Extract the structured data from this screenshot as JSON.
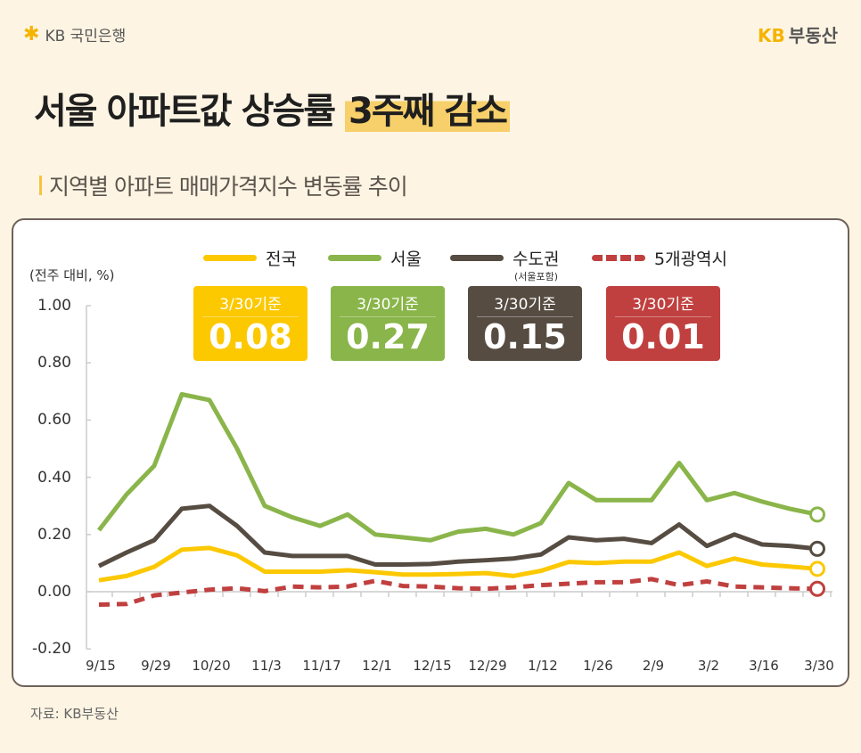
{
  "header": {
    "bank_logo": "KB 국민은행",
    "brand_kb": "KB",
    "brand_name": "부동산"
  },
  "title": {
    "main": "서울 아파트값 상승률",
    "highlight": "3주째 감소"
  },
  "subtitle": "지역별 아파트 매매가격지수 변동률 추이",
  "source": "자료: KB부동산",
  "legend": [
    {
      "name": "전국",
      "color": "#fcc800",
      "style": "solid"
    },
    {
      "name": "서울",
      "color": "#8ab54a",
      "style": "solid"
    },
    {
      "name": "수도권",
      "sub": "(서울포함)",
      "color": "#564c42",
      "style": "solid"
    },
    {
      "name": "5개광역시",
      "color": "#c0403f",
      "style": "dashed"
    }
  ],
  "badges": [
    {
      "label": "3/30기준",
      "value": "0.08",
      "color": "#fcc800"
    },
    {
      "label": "3/30기준",
      "value": "0.27",
      "color": "#8ab54a"
    },
    {
      "label": "3/30기준",
      "value": "0.15",
      "color": "#564c42"
    },
    {
      "label": "3/30기준",
      "value": "0.01",
      "color": "#c0403f"
    }
  ],
  "chart_data": {
    "type": "line",
    "ylabel": "(전주 대비, %)",
    "ylim": [
      -0.2,
      1.0
    ],
    "yticks": [
      "1.00",
      "0.80",
      "0.60",
      "0.40",
      "0.20",
      "0.00",
      "-0.20"
    ],
    "ytick_values": [
      1.0,
      0.8,
      0.6,
      0.4,
      0.2,
      0.0,
      -0.2
    ],
    "xtick_labels": [
      "9/15",
      "9/29",
      "10/20",
      "11/3",
      "11/17",
      "12/1",
      "12/15",
      "12/29",
      "1/12",
      "1/26",
      "2/9",
      "3/2",
      "3/16",
      "3/30"
    ],
    "x": [
      "9/15",
      "9/22",
      "9/29",
      "10/13",
      "10/20",
      "10/27",
      "11/3",
      "11/10",
      "11/17",
      "11/24",
      "12/1",
      "12/8",
      "12/15",
      "12/22",
      "12/29",
      "1/5",
      "1/12",
      "1/19",
      "1/26",
      "2/2",
      "2/9",
      "2/23",
      "3/2",
      "3/9",
      "3/16",
      "3/23",
      "3/30"
    ],
    "series": [
      {
        "name": "전국",
        "color": "#fcc800",
        "dashed": false,
        "values": [
          0.04,
          0.055,
          0.087,
          0.147,
          0.153,
          0.127,
          0.07,
          0.07,
          0.07,
          0.075,
          0.068,
          0.06,
          0.06,
          0.062,
          0.065,
          0.055,
          0.073,
          0.104,
          0.1,
          0.105,
          0.105,
          0.137,
          0.09,
          0.116,
          0.095,
          0.088,
          0.08
        ]
      },
      {
        "name": "서울",
        "color": "#8ab54a",
        "dashed": false,
        "values": [
          0.215,
          0.34,
          0.44,
          0.69,
          0.67,
          0.5,
          0.3,
          0.26,
          0.23,
          0.27,
          0.2,
          0.19,
          0.18,
          0.21,
          0.22,
          0.2,
          0.24,
          0.38,
          0.32,
          0.32,
          0.32,
          0.45,
          0.32,
          0.345,
          0.315,
          0.29,
          0.27
        ]
      },
      {
        "name": "수도권",
        "color": "#564c42",
        "dashed": false,
        "values": [
          0.09,
          0.137,
          0.18,
          0.29,
          0.3,
          0.23,
          0.137,
          0.125,
          0.125,
          0.125,
          0.095,
          0.095,
          0.097,
          0.105,
          0.11,
          0.116,
          0.13,
          0.19,
          0.18,
          0.185,
          0.17,
          0.235,
          0.16,
          0.2,
          0.165,
          0.16,
          0.15
        ]
      },
      {
        "name": "5개광역시",
        "color": "#c0403f",
        "dashed": true,
        "values": [
          -0.045,
          -0.043,
          -0.013,
          -0.003,
          0.007,
          0.012,
          0.002,
          0.018,
          0.015,
          0.018,
          0.038,
          0.02,
          0.018,
          0.012,
          0.01,
          0.015,
          0.023,
          0.028,
          0.033,
          0.033,
          0.044,
          0.023,
          0.036,
          0.018,
          0.015,
          0.012,
          0.01
        ]
      }
    ]
  }
}
